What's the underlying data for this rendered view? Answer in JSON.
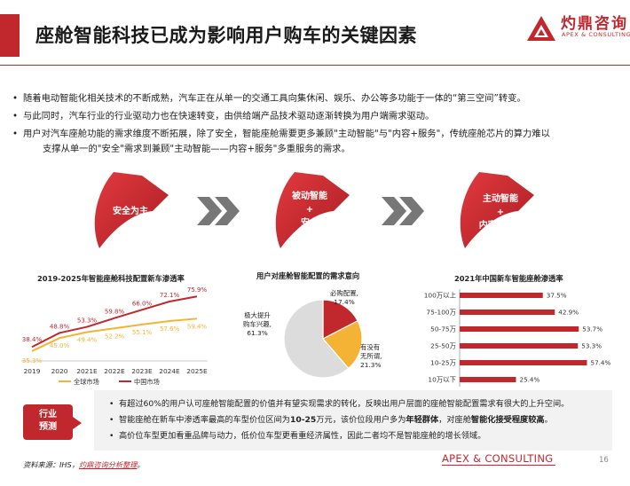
{
  "header": {
    "title": "座舱智能科技已成为影响用户购车的关键因素",
    "logo_cn": "灼鼎咨询",
    "logo_en": "APEX & CONSULTING"
  },
  "bullets": [
    "随着电动智能化相关技术的不断成熟，汽车正在从单一的交通工具向集休闲、娱乐、办公等多功能于一体的“第三空间”转变。",
    "与此同时，汽车行业的行业驱动力也在快速转变，由供给端产品技术驱动逐渐转换为用户端需求驱动。",
    "用户对汽车座舱功能的需求维度不断拓展，除了安全，智能座舱需要更多兼顾\"主动智能\"与\"内容+服务\"，传统座舱芯片的算力难以",
    "支撑从单一的\"安全\"需求到兼顾\"主动智能——内容+服务\"多重服务的需求。"
  ],
  "evolution": {
    "stage1": "安全为主",
    "stage2_l1": "被动智能",
    "stage2_l2": "+",
    "stage2_l3": "安全",
    "stage3_l1": "主动智能",
    "stage3_l2": "+",
    "stage3_l3": "内容+服务"
  },
  "colors": {
    "accent": "#c0282d",
    "global": "#f5b335",
    "china": "#c0282d",
    "gray": "#dcdcdc"
  },
  "chart_data": [
    {
      "type": "line",
      "title": "2019-2025年智能座舱科技配置新车渗透率",
      "x": [
        "2019",
        "2020",
        "2021E",
        "2022E",
        "2023E",
        "2024E",
        "2025E"
      ],
      "series": [
        {
          "name": "全球市场",
          "values": [
            35.3,
            45.0,
            49.4,
            52.2,
            55.1,
            57.6,
            59.4
          ],
          "labels": [
            "35.3%",
            "45.0%",
            "49.4%",
            "52.2%",
            "55.1%",
            "57.6%",
            "59.4%"
          ]
        },
        {
          "name": "中国市场",
          "values": [
            38.4,
            48.8,
            53.3,
            59.8,
            66.0,
            72.1,
            75.9
          ],
          "labels": [
            "38.4%",
            "48.8%",
            "53.3%",
            "59.8%",
            "66.0%",
            "72.1%",
            "75.9%"
          ]
        }
      ]
    },
    {
      "type": "pie",
      "title": "用户对座舱智能配置的需求意向",
      "slices": [
        {
          "label_l1": "必购配置,",
          "label_l2": "17.4%",
          "value": 17.4
        },
        {
          "label_l1": "有没有",
          "label_l2": "无所谓,",
          "label_l3": "21.3%",
          "value": 21.3
        },
        {
          "label_l1": "极大提升",
          "label_l2": "购车兴趣,",
          "label_l3": "61.3%",
          "value": 61.3
        }
      ]
    },
    {
      "type": "bar",
      "title": "2021年中国新车智能座舱渗透率",
      "categories": [
        "100万以上",
        "75-100万",
        "50-75万",
        "25-50万",
        "10-25万",
        "10万以下"
      ],
      "values": [
        37.5,
        42.9,
        53.7,
        53.3,
        57.4,
        25.4
      ],
      "labels": [
        "37.5%",
        "42.9%",
        "53.7%",
        "53.3%",
        "57.4%",
        "25.4%"
      ]
    }
  ],
  "conclusion": {
    "label_l1": "行业",
    "label_l2": "预测",
    "c1": "有超过60%的用户认可座舱智能配置的价值并有望实现需求的转化，反映出用户层面的座舱智能配置需求有很大的上升空间。",
    "c2_a": "智能座舱在新车中渗透率最高的车型价位区间为",
    "c2_b": "10-25",
    "c2_c": "万元，该价位段用户多为",
    "c2_d": "年轻群体",
    "c2_e": "，对座舱",
    "c2_f": "智能化接受程度较高",
    "c2_g": "。",
    "c3": "高价位车型更加看重品牌与动力，低价位车型更看重经济属性，因此二者均不是智能座舱的增长领域。"
  },
  "footer": {
    "source_prefix": "资料来源：IHS，",
    "source_em": "灼鼎咨询分析整理",
    "source_suffix": "。",
    "brand": "APEX & CONSULTING",
    "page": "16"
  }
}
